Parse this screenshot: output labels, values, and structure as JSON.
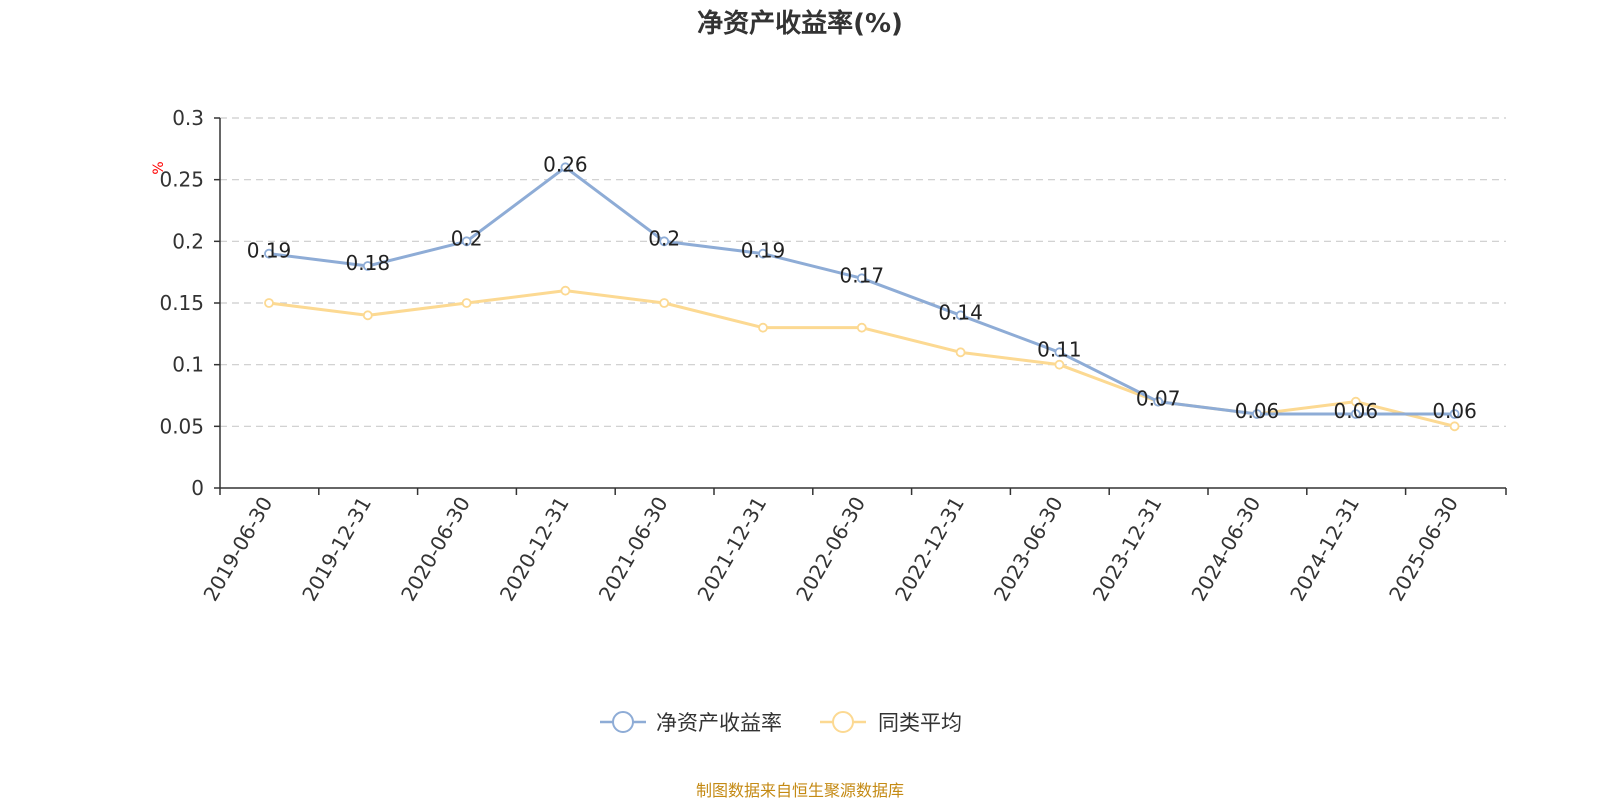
{
  "chart_data": {
    "type": "line",
    "title": "净资产收益率(%)",
    "ylabel": "%",
    "ylim": [
      0,
      0.3
    ],
    "yticks": [
      "0",
      "0.05",
      "0.1",
      "0.15",
      "0.2",
      "0.25",
      "0.3"
    ],
    "grid": "dashed-horizontal",
    "legend_position": "bottom-center",
    "categories": [
      "2019-06-30",
      "2019-12-31",
      "2020-06-30",
      "2020-12-31",
      "2021-06-30",
      "2021-12-31",
      "2022-06-30",
      "2022-12-31",
      "2023-06-30",
      "2023-12-31",
      "2024-06-30",
      "2024-12-31",
      "2025-06-30"
    ],
    "series": [
      {
        "name": "净资产收益率",
        "color": "#8eacd6",
        "values": [
          0.19,
          0.18,
          0.2,
          0.26,
          0.2,
          0.19,
          0.17,
          0.14,
          0.11,
          0.07,
          0.06,
          0.06,
          0.06
        ],
        "labels": [
          "0.19",
          "0.18",
          "0.2",
          "0.26",
          "0.2",
          "0.19",
          "0.17",
          "0.14",
          "0.11",
          "0.07",
          "0.06",
          "0.06",
          "0.06"
        ]
      },
      {
        "name": "同类平均",
        "color": "#fcd992",
        "values": [
          0.15,
          0.14,
          0.15,
          0.16,
          0.15,
          0.13,
          0.13,
          0.11,
          0.1,
          0.07,
          0.06,
          0.07,
          0.05
        ]
      }
    ]
  },
  "footer": {
    "source": "制图数据来自恒生聚源数据库"
  }
}
